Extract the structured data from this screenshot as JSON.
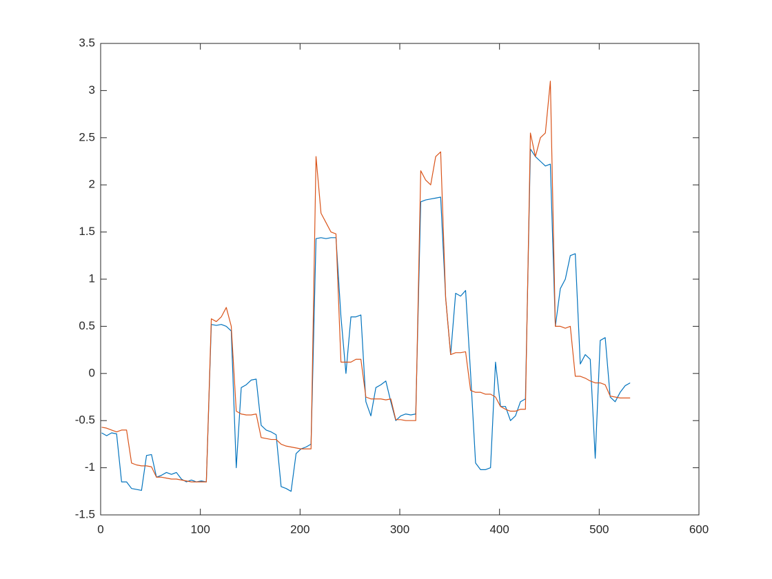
{
  "chart_data": {
    "type": "line",
    "x": [
      1,
      6,
      11,
      16,
      21,
      26,
      31,
      36,
      41,
      46,
      51,
      56,
      61,
      66,
      71,
      76,
      81,
      86,
      91,
      96,
      101,
      106,
      111,
      116,
      121,
      126,
      131,
      136,
      141,
      146,
      151,
      156,
      161,
      166,
      171,
      176,
      181,
      186,
      191,
      196,
      201,
      206,
      211,
      216,
      221,
      226,
      231,
      236,
      241,
      246,
      251,
      256,
      261,
      266,
      271,
      276,
      281,
      286,
      291,
      296,
      301,
      306,
      311,
      316,
      321,
      326,
      331,
      336,
      341,
      346,
      351,
      356,
      361,
      366,
      371,
      376,
      381,
      386,
      391,
      396,
      401,
      406,
      411,
      416,
      421,
      426,
      431,
      436,
      441,
      446,
      451,
      456,
      461,
      466,
      471,
      476,
      481,
      486,
      491,
      496,
      501,
      506,
      511,
      516,
      521,
      526,
      531
    ],
    "series": [
      {
        "color": "#0072BD",
        "values": [
          -0.63,
          -0.66,
          -0.63,
          -0.64,
          -1.15,
          -1.15,
          -1.22,
          -1.23,
          -1.24,
          -0.87,
          -0.86,
          -1.1,
          -1.08,
          -1.05,
          -1.07,
          -1.05,
          -1.12,
          -1.15,
          -1.13,
          -1.15,
          -1.14,
          -1.15,
          0.52,
          0.51,
          0.52,
          0.5,
          0.45,
          -1.0,
          -0.15,
          -0.12,
          -0.07,
          -0.06,
          -0.55,
          -0.6,
          -0.62,
          -0.65,
          -1.2,
          -1.22,
          -1.25,
          -0.85,
          -0.8,
          -0.78,
          -0.75,
          1.43,
          1.44,
          1.43,
          1.44,
          1.44,
          0.6,
          0.0,
          0.6,
          0.6,
          0.62,
          -0.3,
          -0.45,
          -0.15,
          -0.12,
          -0.08,
          -0.3,
          -0.5,
          -0.45,
          -0.43,
          -0.44,
          -0.43,
          1.82,
          1.84,
          1.85,
          1.86,
          1.87,
          0.8,
          0.2,
          0.85,
          0.82,
          0.88,
          0.0,
          -0.95,
          -1.02,
          -1.02,
          -1.0,
          0.12,
          -0.35,
          -0.35,
          -0.5,
          -0.45,
          -0.3,
          -0.27,
          2.38,
          2.3,
          2.25,
          2.2,
          2.22,
          0.5,
          0.9,
          1.0,
          1.25,
          1.27,
          0.1,
          0.2,
          0.15,
          -0.9,
          0.35,
          0.38,
          -0.25,
          -0.3,
          -0.2,
          -0.13,
          -0.1
        ]
      },
      {
        "color": "#D95319",
        "values": [
          -0.57,
          -0.58,
          -0.6,
          -0.62,
          -0.6,
          -0.6,
          -0.95,
          -0.97,
          -0.98,
          -0.98,
          -0.99,
          -1.1,
          -1.1,
          -1.11,
          -1.12,
          -1.12,
          -1.13,
          -1.14,
          -1.15,
          -1.15,
          -1.15,
          -1.15,
          0.58,
          0.55,
          0.6,
          0.7,
          0.5,
          -0.4,
          -0.43,
          -0.44,
          -0.44,
          -0.43,
          -0.68,
          -0.69,
          -0.7,
          -0.7,
          -0.75,
          -0.77,
          -0.78,
          -0.79,
          -0.8,
          -0.8,
          -0.8,
          2.3,
          1.7,
          1.6,
          1.5,
          1.48,
          0.12,
          0.12,
          0.12,
          0.15,
          0.15,
          -0.25,
          -0.27,
          -0.27,
          -0.27,
          -0.28,
          -0.27,
          -0.49,
          -0.49,
          -0.5,
          -0.5,
          -0.5,
          2.15,
          2.05,
          2.0,
          2.3,
          2.35,
          0.8,
          0.2,
          0.22,
          0.22,
          0.23,
          -0.18,
          -0.2,
          -0.2,
          -0.22,
          -0.22,
          -0.25,
          -0.35,
          -0.38,
          -0.4,
          -0.4,
          -0.38,
          -0.38,
          2.55,
          2.3,
          2.5,
          2.55,
          3.1,
          0.5,
          0.5,
          0.48,
          0.5,
          -0.03,
          -0.03,
          -0.05,
          -0.08,
          -0.1,
          -0.1,
          -0.12,
          -0.24,
          -0.25,
          -0.26,
          -0.26,
          -0.26
        ]
      }
    ],
    "xlim": [
      0,
      600
    ],
    "xticks": [
      0,
      100,
      200,
      300,
      400,
      500,
      600
    ],
    "ylim": [
      -1.5,
      3.5
    ],
    "yticks": [
      -1.5,
      -1,
      -0.5,
      0,
      0.5,
      1,
      1.5,
      2,
      2.5,
      3,
      3.5
    ],
    "grid": false
  }
}
